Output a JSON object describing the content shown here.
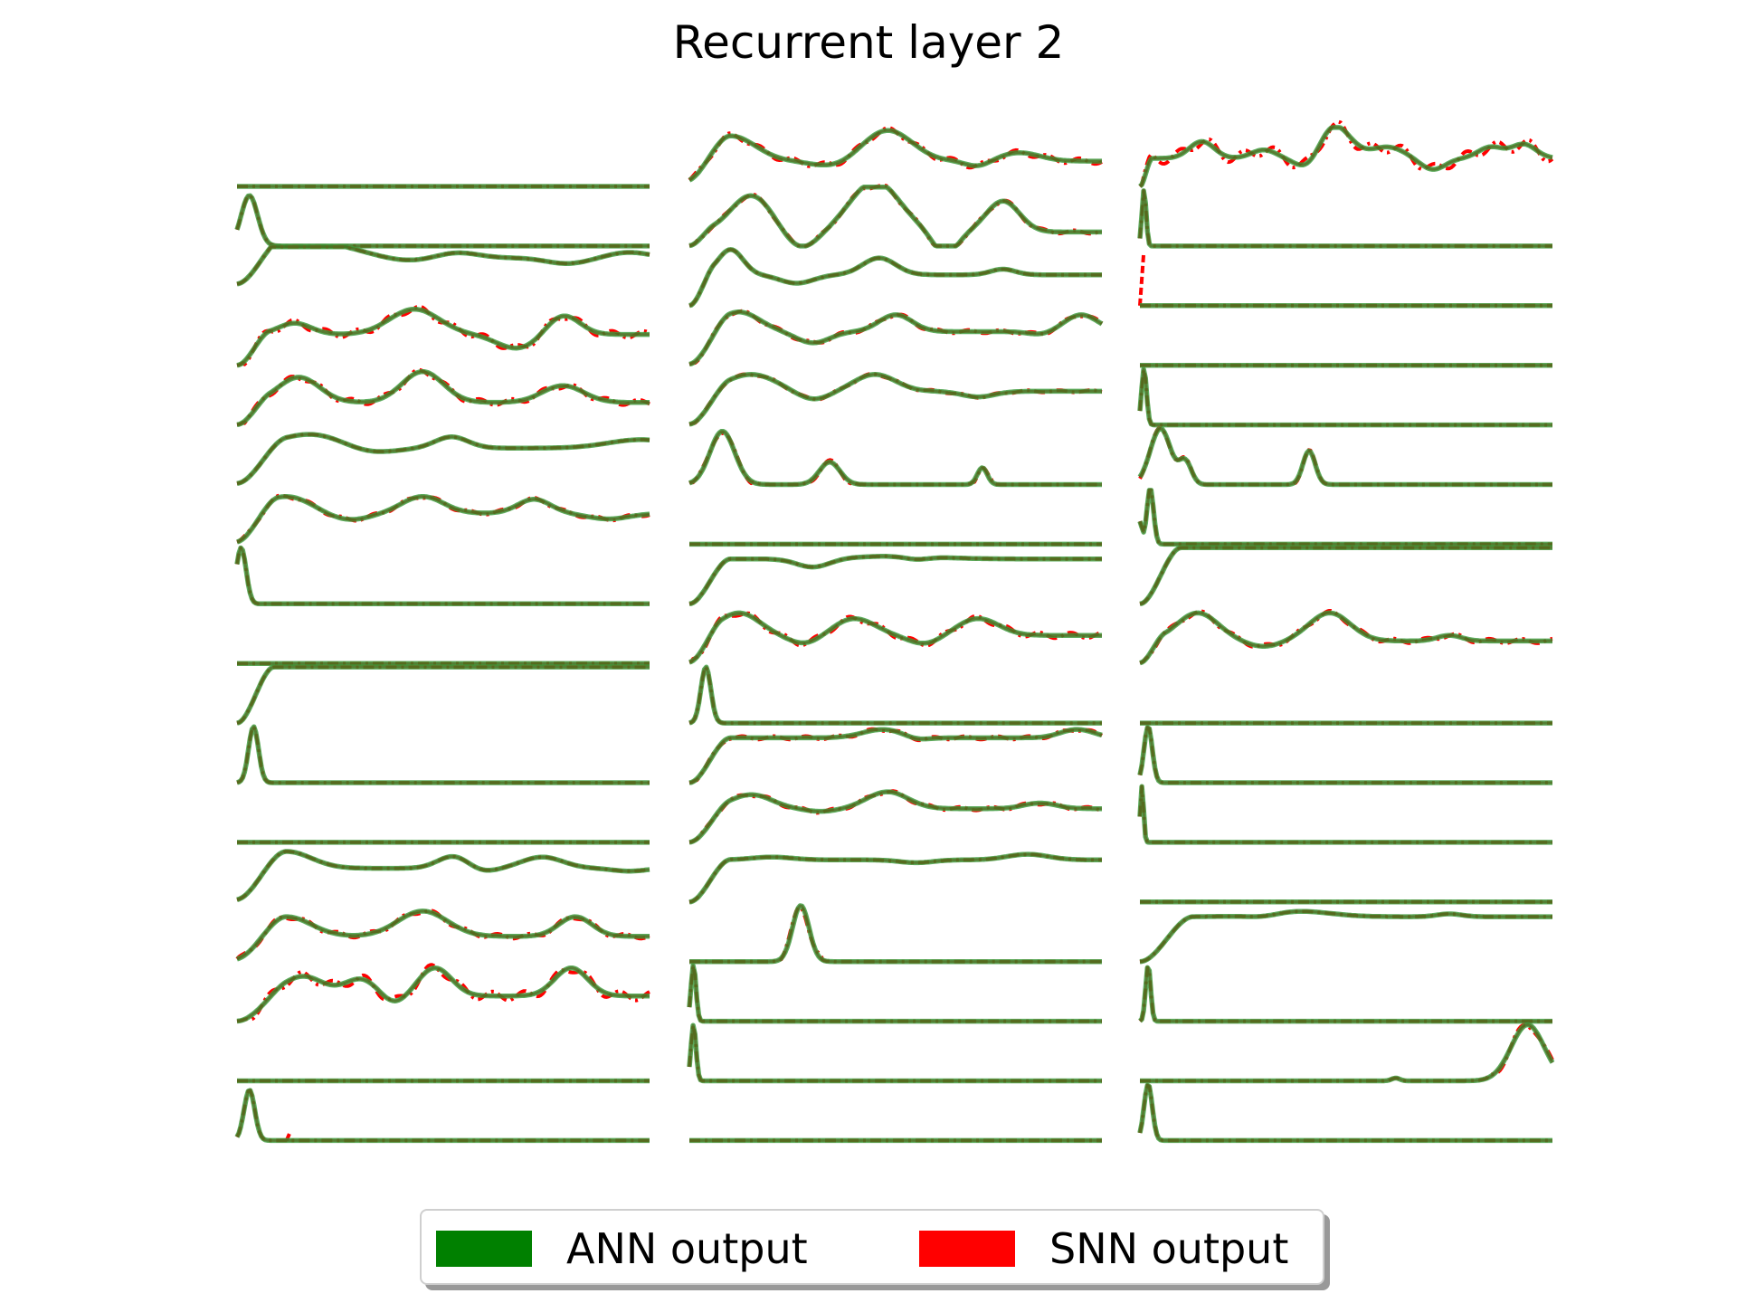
{
  "chart_data": {
    "type": "line",
    "title": "Recurrent layer 2",
    "xlabel": "",
    "ylabel": "",
    "grid": false,
    "axes_visible": false,
    "legend_placement": "bottom-center",
    "layout": {
      "columns": 3,
      "rows": 17
    },
    "series_styles": [
      {
        "name": "ANN output",
        "color": "#008000",
        "line": "solid"
      },
      {
        "name": "SNN output",
        "color": "#ff0000",
        "line": "dash-dot"
      }
    ],
    "traces": [
      [
        {
          "kind": "flat"
        },
        {
          "kind": "spikes",
          "peaks": [
            [
              0.03,
              0.9,
              0.02
            ]
          ]
        },
        {
          "kind": "wave",
          "level": 0.85,
          "rise": 0.12,
          "bumps": [
            [
              0.05,
              0.4,
              0.2
            ],
            [
              0.53,
              0.1,
              0.05
            ],
            [
              0.95,
              0.1,
              0.05
            ]
          ],
          "dips": [
            [
              0.4,
              0.12,
              0.08
            ],
            [
              0.8,
              0.1,
              0.05
            ]
          ]
        },
        {
          "kind": "wave",
          "level": 0.55,
          "rise": 0.08,
          "bumps": [
            [
              0.14,
              0.2,
              0.04
            ],
            [
              0.43,
              0.45,
              0.06
            ],
            [
              0.79,
              0.35,
              0.04
            ]
          ],
          "dips": [
            [
              0.68,
              0.25,
              0.05
            ]
          ],
          "dev": 0.06
        },
        {
          "kind": "wave",
          "level": 0.4,
          "rise": 0.08,
          "bumps": [
            [
              0.15,
              0.45,
              0.05
            ],
            [
              0.45,
              0.55,
              0.05
            ],
            [
              0.79,
              0.3,
              0.05
            ]
          ],
          "dev": 0.05
        },
        {
          "kind": "wave",
          "level": 0.65,
          "rise": 0.12,
          "bumps": [
            [
              0.18,
              0.25,
              0.08
            ],
            [
              0.52,
              0.2,
              0.04
            ],
            [
              0.98,
              0.15,
              0.08
            ]
          ],
          "dips": [
            [
              0.32,
              0.1,
              0.06
            ]
          ]
        },
        {
          "kind": "wave",
          "level": 0.55,
          "rise": 0.1,
          "bumps": [
            [
              0.12,
              0.3,
              0.06
            ],
            [
              0.45,
              0.3,
              0.05
            ],
            [
              0.72,
              0.25,
              0.04
            ]
          ],
          "dips": [
            [
              0.27,
              0.12,
              0.05
            ],
            [
              0.9,
              0.1,
              0.05
            ]
          ],
          "dev": 0.03
        },
        {
          "kind": "spikes",
          "peaks": [
            [
              0.01,
              1.0,
              0.012
            ]
          ]
        },
        {
          "kind": "flat"
        },
        {
          "kind": "sat",
          "end": 0.09
        },
        {
          "kind": "spikes",
          "peaks": [
            [
              0.04,
              1.0,
              0.012
            ]
          ]
        },
        {
          "kind": "flat"
        },
        {
          "kind": "wave",
          "level": 0.6,
          "rise": 0.12,
          "bumps": [
            [
              0.12,
              0.3,
              0.06
            ],
            [
              0.53,
              0.25,
              0.04
            ],
            [
              0.74,
              0.2,
              0.05
            ]
          ],
          "dips": [
            [
              0.58,
              0.1,
              0.04
            ],
            [
              0.95,
              0.05,
              0.04
            ]
          ]
        },
        {
          "kind": "wave",
          "level": 0.45,
          "rise": 0.12,
          "bumps": [
            [
              0.12,
              0.35,
              0.06
            ],
            [
              0.45,
              0.45,
              0.06
            ],
            [
              0.82,
              0.35,
              0.04
            ]
          ],
          "dev": 0.04
        },
        {
          "kind": "wave",
          "level": 0.45,
          "rise": 0.12,
          "bumps": [
            [
              0.16,
              0.35,
              0.05
            ],
            [
              0.3,
              0.3,
              0.04
            ],
            [
              0.48,
              0.5,
              0.04
            ],
            [
              0.81,
              0.5,
              0.04
            ]
          ],
          "dips": [
            [
              0.38,
              0.15,
              0.03
            ]
          ],
          "dev": 0.08
        },
        {
          "kind": "flat"
        },
        {
          "kind": "spikes",
          "peaks": [
            [
              0.03,
              0.9,
              0.013
            ]
          ],
          "snn_tail": [
            0.12,
            0.15
          ]
        }
      ],
      [
        {
          "kind": "wave",
          "level": 0.45,
          "rise": 0.1,
          "bumps": [
            [
              0.1,
              0.45,
              0.06
            ],
            [
              0.48,
              0.55,
              0.06
            ],
            [
              0.8,
              0.15,
              0.05
            ]
          ],
          "dips": [
            [
              0.35,
              0.1,
              0.05
            ],
            [
              0.7,
              0.1,
              0.03
            ]
          ],
          "dev": 0.05
        },
        {
          "kind": "wave",
          "level": 0.25,
          "rise": 0.06,
          "bumps": [
            [
              0.15,
              0.65,
              0.05
            ],
            [
              0.45,
              0.9,
              0.06
            ],
            [
              0.76,
              0.55,
              0.04
            ]
          ],
          "dips": [
            [
              0.27,
              0.3,
              0.04
            ],
            [
              0.62,
              0.4,
              0.03
            ]
          ],
          "dev": 0.03
        },
        {
          "kind": "wave",
          "level": 0.55,
          "rise": 0.06,
          "bumps": [
            [
              0.1,
              0.45,
              0.03
            ],
            [
              0.46,
              0.3,
              0.04
            ],
            [
              0.76,
              0.1,
              0.03
            ]
          ],
          "dips": [
            [
              0.26,
              0.15,
              0.04
            ]
          ]
        },
        {
          "kind": "wave",
          "level": 0.6,
          "rise": 0.1,
          "bumps": [
            [
              0.12,
              0.35,
              0.05
            ],
            [
              0.5,
              0.3,
              0.04
            ],
            [
              0.95,
              0.3,
              0.04
            ]
          ],
          "dips": [
            [
              0.3,
              0.2,
              0.04
            ],
            [
              0.85,
              0.05,
              0.03
            ]
          ],
          "dev": 0.03
        },
        {
          "kind": "wave",
          "level": 0.6,
          "rise": 0.1,
          "bumps": [
            [
              0.15,
              0.3,
              0.06
            ],
            [
              0.45,
              0.3,
              0.05
            ]
          ],
          "dips": [
            [
              0.3,
              0.15,
              0.04
            ],
            [
              0.7,
              0.1,
              0.04
            ]
          ],
          "dev": 0.02
        },
        {
          "kind": "spikes",
          "peaks": [
            [
              0.08,
              0.95,
              0.03
            ],
            [
              0.34,
              0.4,
              0.025
            ],
            [
              0.71,
              0.3,
              0.012
            ]
          ],
          "dev": 0.04
        },
        {
          "kind": "flat"
        },
        {
          "kind": "wave",
          "level": 0.8,
          "rise": 0.1,
          "bumps": [
            [
              0.5,
              0.05,
              0.1
            ]
          ],
          "dips": [
            [
              0.3,
              0.15,
              0.04
            ],
            [
              0.55,
              0.05,
              0.03
            ]
          ]
        },
        {
          "kind": "wave",
          "level": 0.5,
          "rise": 0.08,
          "bumps": [
            [
              0.12,
              0.4,
              0.05
            ],
            [
              0.4,
              0.3,
              0.05
            ],
            [
              0.7,
              0.3,
              0.05
            ]
          ],
          "dips": [
            [
              0.28,
              0.15,
              0.04
            ],
            [
              0.57,
              0.15,
              0.04
            ]
          ],
          "dev": 0.05
        },
        {
          "kind": "spikes",
          "peaks": [
            [
              0.04,
              1.0,
              0.012
            ]
          ]
        },
        {
          "kind": "wave",
          "level": 0.8,
          "rise": 0.1,
          "bumps": [
            [
              0.47,
              0.15,
              0.05
            ],
            [
              0.94,
              0.15,
              0.04
            ]
          ],
          "dips": [
            [
              0.55,
              0.05,
              0.03
            ]
          ],
          "dev": 0.03
        },
        {
          "kind": "wave",
          "level": 0.6,
          "rise": 0.1,
          "bumps": [
            [
              0.15,
              0.25,
              0.05
            ],
            [
              0.48,
              0.3,
              0.05
            ],
            [
              0.85,
              0.1,
              0.04
            ]
          ],
          "dips": [
            [
              0.32,
              0.05,
              0.04
            ]
          ],
          "dev": 0.03
        },
        {
          "kind": "wave",
          "level": 0.75,
          "rise": 0.1,
          "bumps": [
            [
              0.2,
              0.05,
              0.05
            ],
            [
              0.82,
              0.1,
              0.05
            ]
          ],
          "dips": [
            [
              0.55,
              0.05,
              0.04
            ]
          ]
        },
        {
          "kind": "spikes",
          "peaks": [
            [
              0.27,
              1.0,
              0.02
            ]
          ],
          "dev": 0.08
        },
        {
          "kind": "spikes",
          "peaks": [
            [
              0.01,
              1.0,
              0.006
            ]
          ]
        },
        {
          "kind": "spikes",
          "peaks": [
            [
              0.01,
              1.0,
              0.006
            ]
          ]
        },
        {
          "kind": "flat"
        }
      ],
      [
        {
          "kind": "wave",
          "level": 0.5,
          "rise": 0.03,
          "bumps": [
            [
              0.15,
              0.3,
              0.03
            ],
            [
              0.3,
              0.15,
              0.03
            ],
            [
              0.47,
              0.6,
              0.04
            ],
            [
              0.6,
              0.2,
              0.04
            ],
            [
              0.85,
              0.2,
              0.03
            ],
            [
              0.93,
              0.25,
              0.03
            ]
          ],
          "dips": [
            [
              0.41,
              0.25,
              0.03
            ],
            [
              0.71,
              0.2,
              0.03
            ]
          ],
          "dev": 0.1
        },
        {
          "kind": "spikes",
          "peaks": [
            [
              0.01,
              1.0,
              0.005
            ]
          ]
        },
        {
          "kind": "spikes",
          "peaks": [],
          "snn_tail": [
            0.0,
            0.9
          ]
        },
        {
          "kind": "flat"
        },
        {
          "kind": "spikes",
          "peaks": [
            [
              0.01,
              1.0,
              0.006
            ]
          ]
        },
        {
          "kind": "spikes",
          "peaks": [
            [
              0.05,
              1.0,
              0.025
            ],
            [
              0.11,
              0.4,
              0.015
            ],
            [
              0.41,
              0.6,
              0.015
            ]
          ],
          "dev": 0.03
        },
        {
          "kind": "spikes",
          "peaks": [
            [
              0.0,
              0.4,
              0.005
            ],
            [
              0.025,
              1.0,
              0.008
            ]
          ]
        },
        {
          "kind": "sat",
          "end": 0.1
        },
        {
          "kind": "wave",
          "level": 0.4,
          "rise": 0.06,
          "bumps": [
            [
              0.14,
              0.5,
              0.05
            ],
            [
              0.46,
              0.5,
              0.05
            ],
            [
              0.75,
              0.1,
              0.03
            ]
          ],
          "dips": [
            [
              0.3,
              0.1,
              0.04
            ]
          ],
          "dev": 0.04
        },
        {
          "kind": "flat"
        },
        {
          "kind": "spikes",
          "peaks": [
            [
              0.02,
              1.0,
              0.01
            ]
          ]
        },
        {
          "kind": "spikes",
          "peaks": [
            [
              0.005,
              1.0,
              0.004
            ]
          ]
        },
        {
          "kind": "flat"
        },
        {
          "kind": "wave",
          "level": 0.8,
          "rise": 0.13,
          "bumps": [
            [
              0.38,
              0.1,
              0.08
            ],
            [
              0.75,
              0.05,
              0.03
            ]
          ],
          "dips": [
            [
              0.3,
              0.05,
              0.04
            ]
          ]
        },
        {
          "kind": "spikes",
          "peaks": [
            [
              0.02,
              1.0,
              0.006
            ]
          ]
        },
        {
          "kind": "spikes",
          "peaks": [
            [
              0.62,
              0.05,
              0.01
            ],
            [
              0.94,
              1.0,
              0.04
            ]
          ],
          "dev": 0.06
        },
        {
          "kind": "spikes",
          "peaks": [
            [
              0.02,
              1.0,
              0.01
            ]
          ]
        }
      ]
    ]
  },
  "legend": {
    "items": [
      {
        "label": "ANN output",
        "color": "#008000"
      },
      {
        "label": "SNN output",
        "color": "#ff0000"
      }
    ]
  }
}
